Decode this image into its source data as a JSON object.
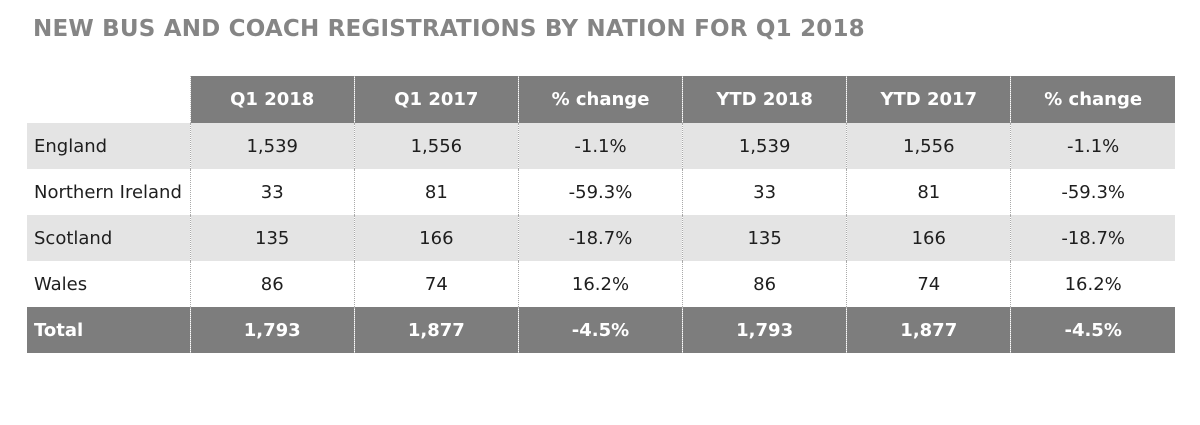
{
  "title": "NEW BUS AND COACH REGISTRATIONS BY NATION FOR Q1 2018",
  "colors": {
    "title": "#858585",
    "header_bg": "#7d7d7d",
    "row_shade": "#e4e4e4",
    "total_bg": "#7d7d7d"
  },
  "table": {
    "columns": [
      "Q1 2018",
      "Q1 2017",
      "% change",
      "YTD 2018",
      "YTD 2017",
      "% change"
    ],
    "rows": [
      {
        "nation": "England",
        "values": [
          "1,539",
          "1,556",
          "-1.1%",
          "1,539",
          "1,556",
          "-1.1%"
        ]
      },
      {
        "nation": "Northern Ireland",
        "values": [
          "33",
          "81",
          "-59.3%",
          "33",
          "81",
          "-59.3%"
        ]
      },
      {
        "nation": "Scotland",
        "values": [
          "135",
          "166",
          "-18.7%",
          "135",
          "166",
          "-18.7%"
        ]
      },
      {
        "nation": "Wales",
        "values": [
          "86",
          "74",
          "16.2%",
          "86",
          "74",
          "16.2%"
        ]
      }
    ],
    "total": {
      "label": "Total",
      "values": [
        "1,793",
        "1,877",
        "-4.5%",
        "1,793",
        "1,877",
        "-4.5%"
      ]
    }
  }
}
